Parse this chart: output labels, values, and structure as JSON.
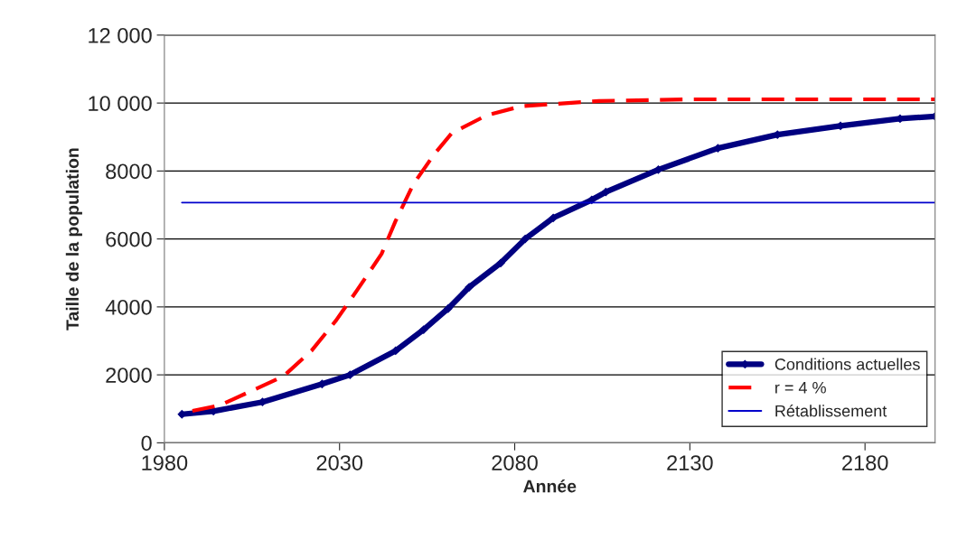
{
  "chart_data": {
    "type": "line",
    "xlabel": "Année",
    "ylabel": "Taille de la population",
    "xlim": [
      1980,
      2200
    ],
    "xticks": [
      1980,
      2030,
      2080,
      2130,
      2180
    ],
    "ylim": [
      0,
      12000
    ],
    "yticks": [
      0,
      2000,
      4000,
      6000,
      8000,
      {
        "value": 10000,
        "label": "10 000"
      },
      {
        "value": 12000,
        "label": "12 000"
      }
    ],
    "grid": "y",
    "legend": "bottom right",
    "series": [
      {
        "name": "Conditions actuelles",
        "color": "#000080",
        "marker": "diamond",
        "line_style": "solid",
        "x": [
          1985,
          1994,
          2008,
          2025,
          2033,
          2046,
          2054,
          2061,
          2067,
          2076,
          2083,
          2091,
          2102,
          2106,
          2121,
          2138,
          2155,
          2173,
          2190,
          2200
        ],
        "values": [
          840,
          930,
          1200,
          1730,
          2000,
          2710,
          3330,
          3950,
          4580,
          5290,
          6000,
          6620,
          7150,
          7380,
          8040,
          8670,
          9070,
          9330,
          9540,
          9610
        ]
      },
      {
        "name": "r = 4 %",
        "color": "#ff0000",
        "marker": "none",
        "line_style": "dashed",
        "x": [
          1988,
          1996,
          2014,
          2022,
          2029,
          2035,
          2042,
          2046,
          2051,
          2057,
          2062,
          2072,
          2082,
          2104,
          2130,
          2200
        ],
        "values": [
          940,
          1110,
          1960,
          2710,
          3600,
          4490,
          5560,
          6530,
          7600,
          8490,
          9110,
          9640,
          9910,
          10060,
          10110,
          10110
        ]
      },
      {
        "name": "Rétablissement",
        "color": "#0000cc",
        "marker": "none",
        "line_style": "solid",
        "x": [
          1985,
          2200
        ],
        "values": [
          7070,
          7070
        ]
      }
    ]
  }
}
